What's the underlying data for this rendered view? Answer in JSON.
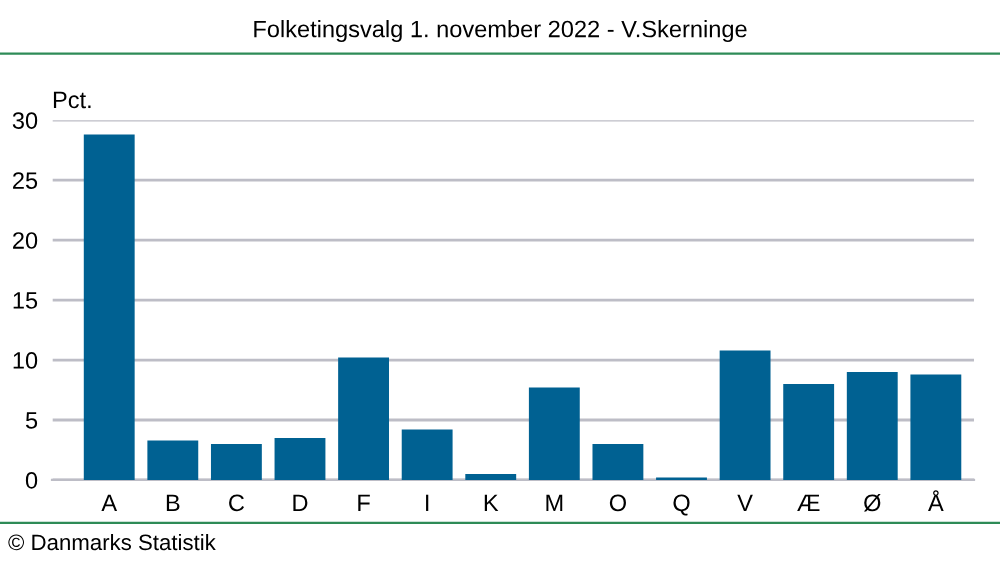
{
  "chart_data": {
    "type": "bar",
    "title": "Folketingsvalg 1. november 2022 - V.Skerninge",
    "ylabel": "Pct.",
    "categories": [
      "A",
      "B",
      "C",
      "D",
      "F",
      "I",
      "K",
      "M",
      "O",
      "Q",
      "V",
      "Æ",
      "Ø",
      "Å"
    ],
    "values": [
      28.8,
      3.3,
      3.0,
      3.5,
      10.2,
      4.2,
      0.5,
      7.7,
      3.0,
      0.2,
      10.8,
      8.0,
      9.0,
      8.8
    ],
    "color": "#006192",
    "ylim": [
      0,
      30
    ],
    "yticks": [
      0,
      5,
      10,
      15,
      20,
      25,
      30
    ],
    "grid": "y",
    "annotations": [
      "© Danmarks Statistik"
    ]
  }
}
